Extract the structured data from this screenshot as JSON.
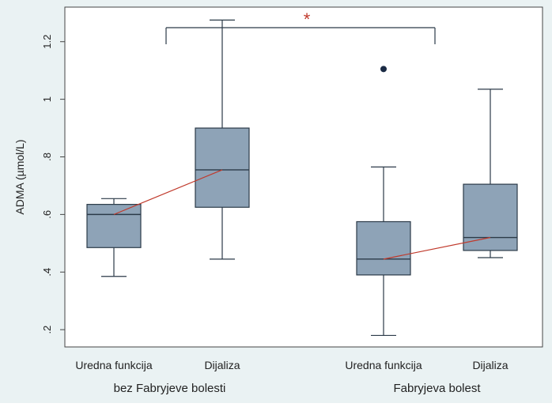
{
  "chart_data": {
    "type": "box",
    "ylabel": "ADMA (µmol/L)",
    "ylim": [
      0.14,
      1.32
    ],
    "yticks": [
      {
        "value": 0.2,
        "label": ".2"
      },
      {
        "value": 0.4,
        "label": ".4"
      },
      {
        "value": 0.6,
        "label": ".6"
      },
      {
        "value": 0.8,
        "label": ".8"
      },
      {
        "value": 1.0,
        "label": "1"
      },
      {
        "value": 1.2,
        "label": "1.2"
      }
    ],
    "groups": [
      {
        "label": "bez Fabryjeve bolesti",
        "boxes": [
          {
            "label": "Uredna funkcija",
            "whisker_low": 0.385,
            "q1": 0.485,
            "median": 0.6,
            "q3": 0.635,
            "whisker_high": 0.655,
            "outliers": []
          },
          {
            "label": "Dijaliza",
            "whisker_low": 0.445,
            "q1": 0.625,
            "median": 0.755,
            "q3": 0.9,
            "whisker_high": 1.275,
            "outliers": []
          }
        ]
      },
      {
        "label": "Fabryjeva bolest",
        "boxes": [
          {
            "label": "Uredna funkcija",
            "whisker_low": 0.18,
            "q1": 0.39,
            "median": 0.445,
            "q3": 0.575,
            "whisker_high": 0.765,
            "outliers": [
              1.105
            ]
          },
          {
            "label": "Dijaliza",
            "whisker_low": 0.45,
            "q1": 0.475,
            "median": 0.52,
            "q3": 0.705,
            "whisker_high": 1.035,
            "outliers": []
          }
        ]
      }
    ],
    "significance": {
      "label": "*",
      "level": 1.315,
      "from_group": 0,
      "to_group": 1
    },
    "colors": {
      "box_fill": "#8ea3b7",
      "box_edge": "#2b3a48",
      "median_line": "#2b3a48",
      "trend_line": "#c0392b",
      "outlier": "#1a2a44",
      "significance": "#c0392b",
      "plot_bg": "#ffffff",
      "frame_bg": "#eaf2f3"
    },
    "grid": false
  }
}
